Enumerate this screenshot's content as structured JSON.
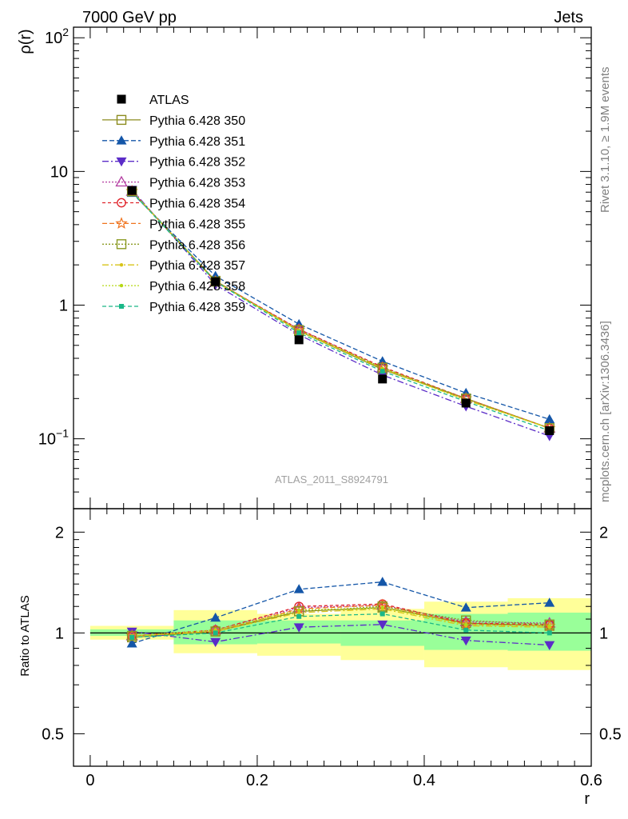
{
  "header": {
    "left": "7000 GeV pp",
    "right": "Jets"
  },
  "side_labels": {
    "rivet": "Rivet 3.1.10, ≥ 1.9M events",
    "mcplots": "mcplots.cern.ch [arXiv:1306.3436]"
  },
  "analysis_id": "ATLAS_2011_S8924791",
  "chart_data": [
    {
      "panel": "main",
      "type": "line",
      "ylabel": "ρ(r)",
      "xlim": [
        -0.02,
        0.6
      ],
      "ylim": [
        0.03,
        120
      ],
      "yscale": "log",
      "y_ticks": [
        {
          "v": 0.1,
          "base": "10",
          "exp": "−1"
        },
        {
          "v": 1,
          "base": "1",
          "exp": ""
        },
        {
          "v": 10,
          "base": "10",
          "exp": ""
        },
        {
          "v": 100,
          "base": "10",
          "exp": "2"
        }
      ],
      "legend_position": "top-left",
      "x": [
        0.05,
        0.15,
        0.25,
        0.35,
        0.45,
        0.55
      ],
      "series": [
        {
          "name": "ATLAS",
          "color": "#000000",
          "marker": "filled-square",
          "dash": "none",
          "values": [
            7.2,
            1.5,
            0.55,
            0.28,
            0.185,
            0.115
          ],
          "data": true
        },
        {
          "name": "Pythia 6.428 350",
          "color": "#8c8c1f",
          "marker": "open-square",
          "dash": "solid",
          "values": [
            7.1,
            1.52,
            0.64,
            0.33,
            0.2,
            0.12
          ]
        },
        {
          "name": "Pythia 6.428 351",
          "color": "#1456a8",
          "marker": "filled-triangle-up",
          "dash": "6,3",
          "values": [
            6.9,
            1.65,
            0.72,
            0.38,
            0.22,
            0.14
          ]
        },
        {
          "name": "Pythia 6.428 352",
          "color": "#5b2cc8",
          "marker": "filled-triangle-down",
          "dash": "8,3,2,3",
          "values": [
            7.3,
            1.42,
            0.6,
            0.3,
            0.175,
            0.105
          ]
        },
        {
          "name": "Pythia 6.428 353",
          "color": "#b33aa0",
          "marker": "open-triangle-up",
          "dash": "2,2",
          "values": [
            7.1,
            1.5,
            0.66,
            0.34,
            0.2,
            0.12
          ]
        },
        {
          "name": "Pythia 6.428 354",
          "color": "#e0242c",
          "marker": "open-circle",
          "dash": "4,3",
          "values": [
            7.1,
            1.5,
            0.66,
            0.345,
            0.2,
            0.12
          ]
        },
        {
          "name": "Pythia 6.428 355",
          "color": "#f0741e",
          "marker": "open-star",
          "dash": "6,3",
          "values": [
            7.1,
            1.5,
            0.65,
            0.34,
            0.2,
            0.12
          ]
        },
        {
          "name": "Pythia 6.428 356",
          "color": "#8a9a22",
          "marker": "open-square",
          "dash": "2,2",
          "values": [
            7.1,
            1.5,
            0.65,
            0.34,
            0.2,
            0.12
          ]
        },
        {
          "name": "Pythia 6.428 357",
          "color": "#d8c418",
          "marker": "small-dot",
          "dash": "8,3,2,3",
          "values": [
            7.1,
            1.5,
            0.64,
            0.335,
            0.195,
            0.12
          ]
        },
        {
          "name": "Pythia 6.428 358",
          "color": "#b6d814",
          "marker": "small-dot",
          "dash": "2,2",
          "values": [
            7.1,
            1.5,
            0.645,
            0.335,
            0.195,
            0.12
          ]
        },
        {
          "name": "Pythia 6.428 359",
          "color": "#1ab888",
          "marker": "small-square",
          "dash": "5,3",
          "values": [
            7.0,
            1.5,
            0.62,
            0.32,
            0.19,
            0.115
          ]
        }
      ]
    },
    {
      "panel": "ratio",
      "type": "line",
      "ylabel": "Ratio to ATLAS",
      "xlabel": "r",
      "xlim": [
        -0.02,
        0.6
      ],
      "ylim": [
        0.4,
        2.35
      ],
      "yscale": "log",
      "x_ticks": [
        {
          "v": 0,
          "label": "0"
        },
        {
          "v": 0.2,
          "label": "0.2"
        },
        {
          "v": 0.4,
          "label": "0.4"
        },
        {
          "v": 0.6,
          "label": "0.6"
        }
      ],
      "y_ticks": [
        {
          "v": 0.5,
          "label": "0.5"
        },
        {
          "v": 1,
          "label": "1"
        },
        {
          "v": 2,
          "label": "2"
        }
      ],
      "bands": {
        "bins": [
          [
            0,
            0.1
          ],
          [
            0.1,
            0.2
          ],
          [
            0.2,
            0.3
          ],
          [
            0.3,
            0.4
          ],
          [
            0.4,
            0.5
          ],
          [
            0.5,
            0.6
          ]
        ],
        "yellow": [
          [
            0.955,
            1.05
          ],
          [
            0.87,
            1.17
          ],
          [
            0.855,
            1.14
          ],
          [
            0.83,
            1.18
          ],
          [
            0.79,
            1.24
          ],
          [
            0.775,
            1.27
          ]
        ],
        "green": [
          [
            0.98,
            1.025
          ],
          [
            0.925,
            1.09
          ],
          [
            0.93,
            1.09
          ],
          [
            0.915,
            1.09
          ],
          [
            0.89,
            1.14
          ],
          [
            0.885,
            1.15
          ]
        ]
      },
      "x": [
        0.05,
        0.15,
        0.25,
        0.35,
        0.45,
        0.55
      ],
      "series": [
        {
          "name": "Pythia 6.428 350",
          "values": [
            0.97,
            1.01,
            1.16,
            1.19,
            1.07,
            1.05
          ]
        },
        {
          "name": "Pythia 6.428 351",
          "values": [
            0.93,
            1.11,
            1.35,
            1.42,
            1.19,
            1.23
          ]
        },
        {
          "name": "Pythia 6.428 352",
          "values": [
            1.01,
            0.94,
            1.04,
            1.06,
            0.95,
            0.92
          ]
        },
        {
          "name": "Pythia 6.428 353",
          "values": [
            0.98,
            1.02,
            1.19,
            1.21,
            1.08,
            1.07
          ]
        },
        {
          "name": "Pythia 6.428 354",
          "values": [
            0.98,
            1.02,
            1.2,
            1.22,
            1.07,
            1.06
          ]
        },
        {
          "name": "Pythia 6.428 355",
          "values": [
            0.98,
            1.01,
            1.18,
            1.21,
            1.06,
            1.05
          ]
        },
        {
          "name": "Pythia 6.428 356",
          "values": [
            0.98,
            1.01,
            1.16,
            1.2,
            1.09,
            1.06
          ]
        },
        {
          "name": "Pythia 6.428 357",
          "values": [
            0.98,
            1.01,
            1.15,
            1.18,
            1.05,
            1.04
          ]
        },
        {
          "name": "Pythia 6.428 358",
          "values": [
            0.98,
            1.02,
            1.17,
            1.19,
            1.06,
            1.05
          ]
        },
        {
          "name": "Pythia 6.428 359",
          "values": [
            0.97,
            1.0,
            1.12,
            1.14,
            1.02,
            1.0
          ]
        }
      ]
    }
  ]
}
